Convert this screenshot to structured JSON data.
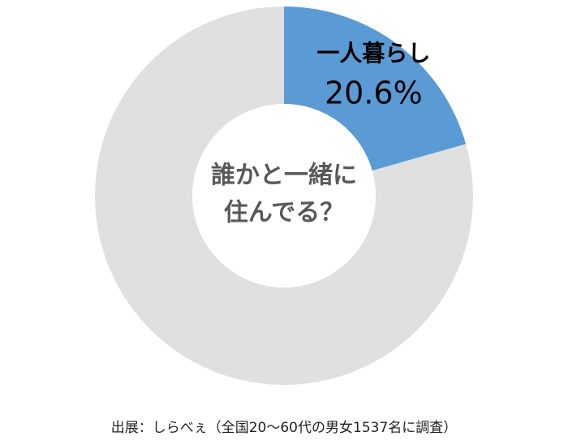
{
  "chart_data": {
    "type": "donut",
    "center_label": [
      "誰かと一緒に",
      "住んでる？"
    ],
    "categories": [
      "一人暮らし",
      null
    ],
    "values": [
      20.6,
      79.4
    ],
    "value_labels": [
      "20.6%",
      null
    ],
    "colors": [
      "#5b9bd5",
      "#e0e0e0"
    ],
    "source": "出展：しらべぇ（全国20～60代の男女1537名に調査）"
  }
}
